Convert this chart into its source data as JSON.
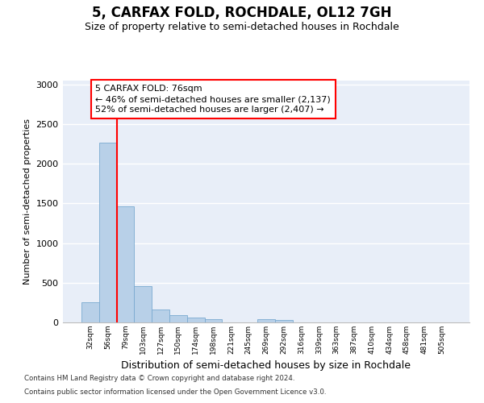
{
  "title": "5, CARFAX FOLD, ROCHDALE, OL12 7GH",
  "subtitle": "Size of property relative to semi-detached houses in Rochdale",
  "xlabel": "Distribution of semi-detached houses by size in Rochdale",
  "ylabel": "Number of semi-detached properties",
  "categories": [
    "32sqm",
    "56sqm",
    "79sqm",
    "103sqm",
    "127sqm",
    "150sqm",
    "174sqm",
    "198sqm",
    "221sqm",
    "245sqm",
    "269sqm",
    "292sqm",
    "316sqm",
    "339sqm",
    "363sqm",
    "387sqm",
    "410sqm",
    "434sqm",
    "458sqm",
    "481sqm",
    "505sqm"
  ],
  "values": [
    250,
    2270,
    1460,
    460,
    160,
    90,
    60,
    45,
    0,
    0,
    45,
    30,
    0,
    0,
    0,
    0,
    0,
    0,
    0,
    0,
    0
  ],
  "bar_color": "#b8d0e8",
  "bar_edgecolor": "#7aaad0",
  "annotation_text": "5 CARFAX FOLD: 76sqm\n← 46% of semi-detached houses are smaller (2,137)\n52% of semi-detached houses are larger (2,407) →",
  "footnote1": "Contains HM Land Registry data © Crown copyright and database right 2024.",
  "footnote2": "Contains public sector information licensed under the Open Government Licence v3.0.",
  "ylim_max": 3050,
  "yticks": [
    0,
    500,
    1000,
    1500,
    2000,
    2500,
    3000
  ],
  "bg_color": "#e8eef8",
  "red_line_bar_index": 2,
  "title_fontsize": 12,
  "subtitle_fontsize": 9,
  "ylabel_fontsize": 8,
  "xlabel_fontsize": 9
}
